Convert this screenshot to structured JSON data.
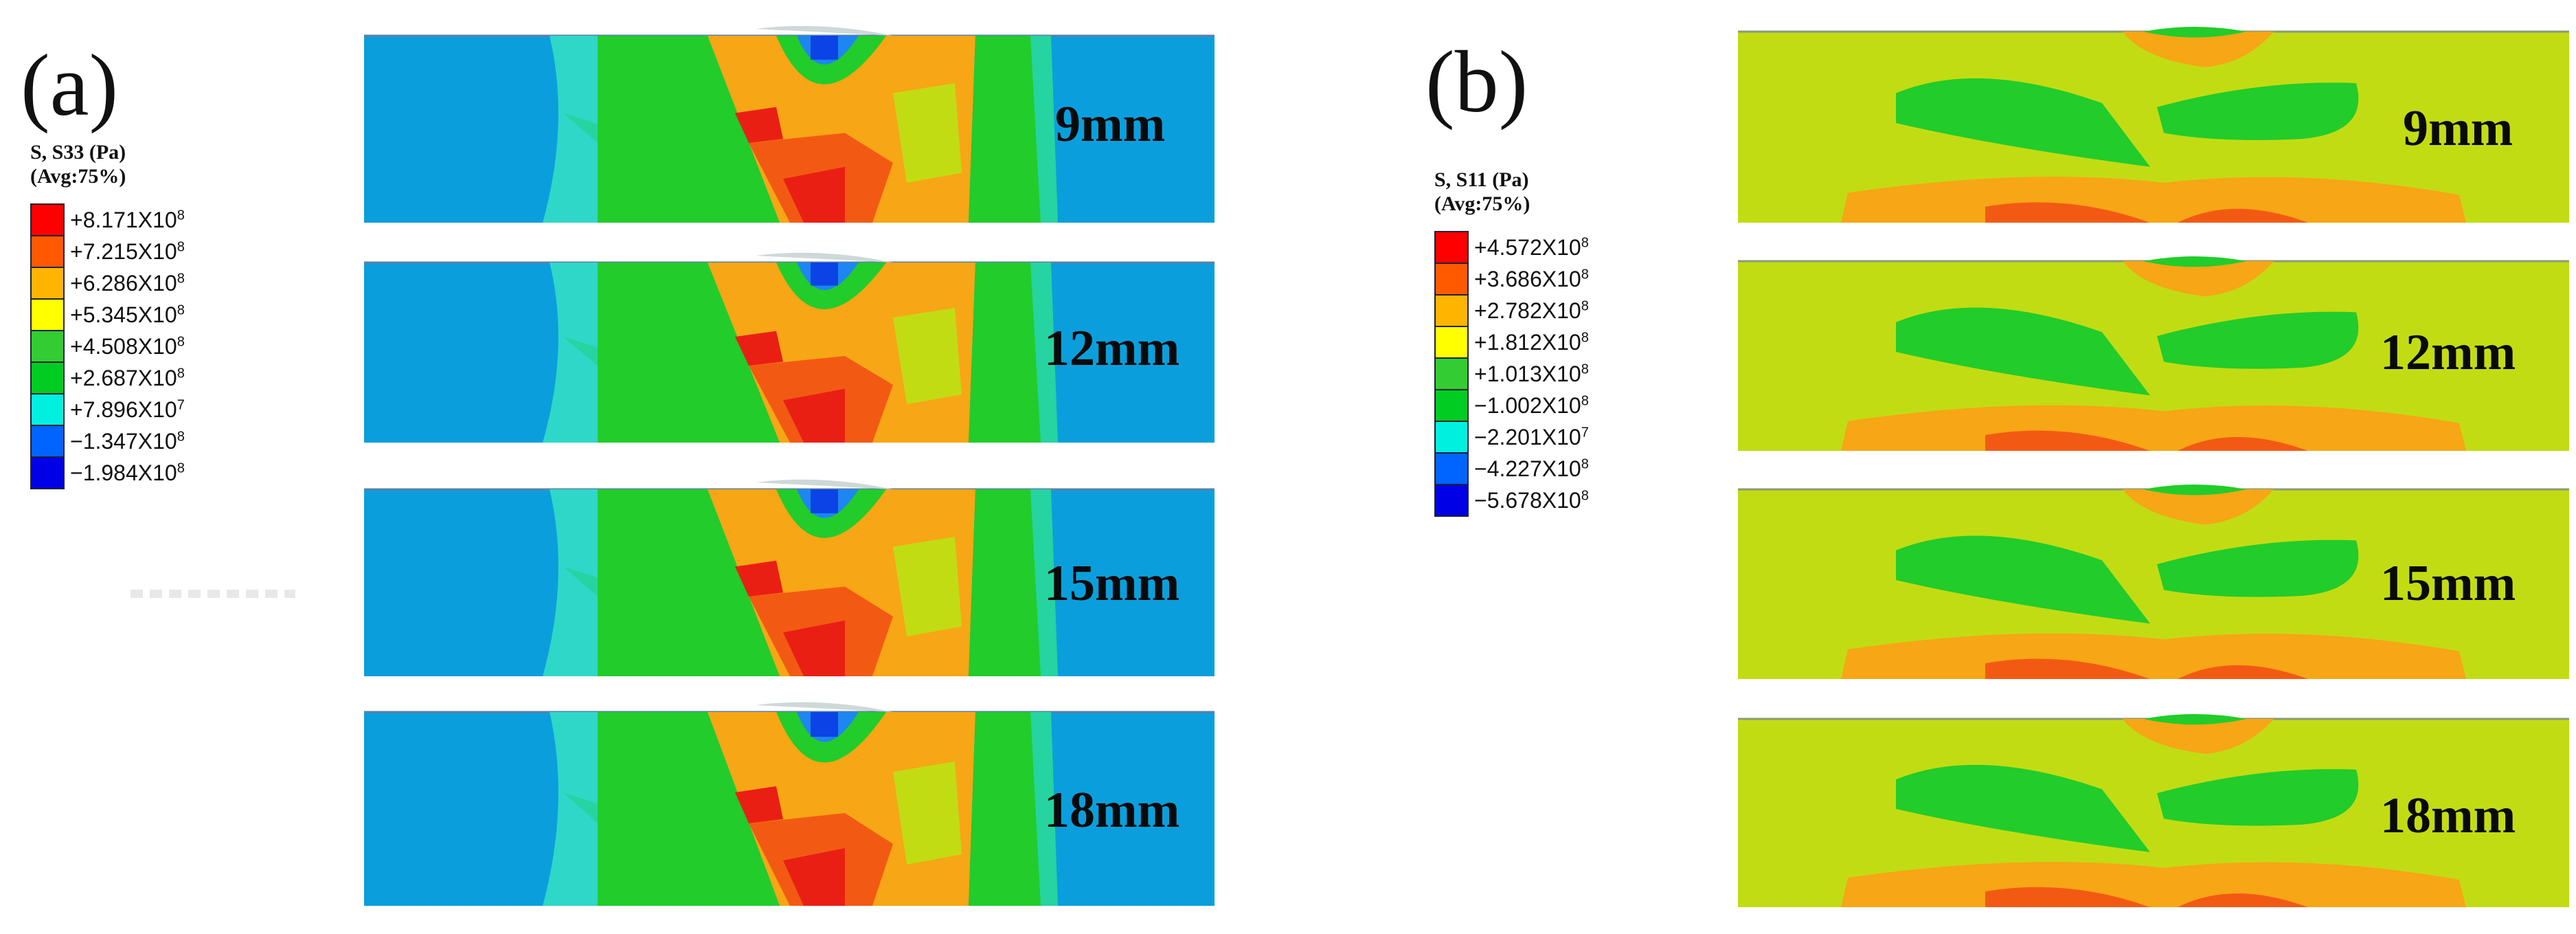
{
  "panels": [
    {
      "label": "(a)",
      "legend": {
        "title_line1": "S, S33 (Pa)",
        "title_line2": "(Avg:75%)",
        "entries": [
          {
            "mant": "+8.171X10",
            "exp": "8",
            "color": "#ff0000"
          },
          {
            "mant": "+7.215X10",
            "exp": "8",
            "color": "#ff5a00"
          },
          {
            "mant": "+6.286X10",
            "exp": "8",
            "color": "#ffb400"
          },
          {
            "mant": "+5.345X10",
            "exp": "8",
            "color": "#ffff00"
          },
          {
            "mant": "+4.508X10",
            "exp": "8",
            "color": "#33cc33"
          },
          {
            "mant": "+2.687X10",
            "exp": "8",
            "color": "#00cc22"
          },
          {
            "mant": "+7.896X10",
            "exp": "7",
            "color": "#00f0e0"
          },
          {
            "mant": "−1.347X10",
            "exp": "8",
            "color": "#0064ff"
          },
          {
            "mant": "−1.984X10",
            "exp": "8",
            "color": "#0000e6"
          }
        ]
      },
      "strips": [
        {
          "tag": "9mm"
        },
        {
          "tag": "12mm"
        },
        {
          "tag": "15mm"
        },
        {
          "tag": "18mm"
        }
      ]
    },
    {
      "label": "(b)",
      "legend": {
        "title_line1": "S, S11 (Pa)",
        "title_line2": "(Avg:75%)",
        "entries": [
          {
            "mant": "+4.572X10",
            "exp": "8",
            "color": "#ff0000"
          },
          {
            "mant": "+3.686X10",
            "exp": "8",
            "color": "#ff5a00"
          },
          {
            "mant": "+2.782X10",
            "exp": "8",
            "color": "#ffb400"
          },
          {
            "mant": "+1.812X10",
            "exp": "8",
            "color": "#ffff00"
          },
          {
            "mant": "+1.013X10",
            "exp": "8",
            "color": "#33cc33"
          },
          {
            "mant": "−1.002X10",
            "exp": "8",
            "color": "#00cc22"
          },
          {
            "mant": "−2.201X10",
            "exp": "7",
            "color": "#00f0e0"
          },
          {
            "mant": "−4.227X10",
            "exp": "8",
            "color": "#0064ff"
          },
          {
            "mant": "−5.678X10",
            "exp": "8",
            "color": "#0000e6"
          }
        ]
      },
      "strips": [
        {
          "tag": "9mm"
        },
        {
          "tag": "12mm"
        },
        {
          "tag": "15mm"
        },
        {
          "tag": "18mm"
        }
      ]
    }
  ],
  "colors": {
    "blue": "#0a9fdc",
    "cyan": "#2fd7c8",
    "mint": "#25d4a0",
    "green": "#22cc2a",
    "yellowgreen": "#c2dc14",
    "orange": "#f7a615",
    "redorange": "#f25a14",
    "red": "#ea1f14",
    "deepblue": "#0b43e6",
    "midblue": "#1d86f0"
  }
}
